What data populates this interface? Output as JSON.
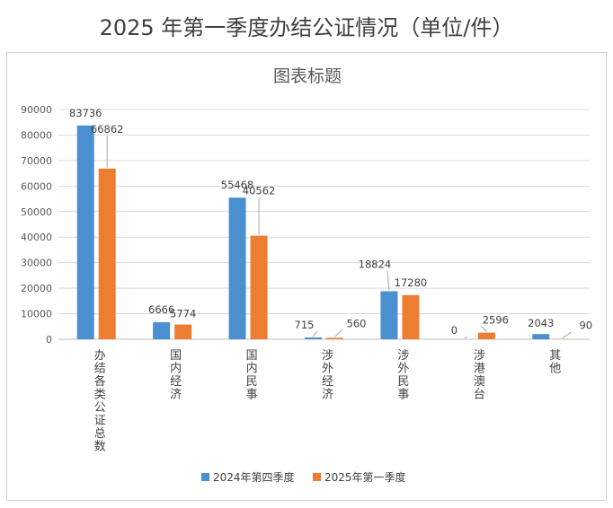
{
  "page": {
    "title": "2025 年第一季度办结公证情况（单位/件）"
  },
  "colors": {
    "series_2024q4": "#4a8fd0",
    "series_2025q1": "#ed7d31",
    "gridline": "#d9d9d9",
    "axis": "#bfbfbf"
  },
  "chart_data": {
    "type": "bar",
    "title": "图表标题",
    "xlabel": "",
    "ylabel": "",
    "ylim": [
      0,
      90000
    ],
    "yticks": [
      0,
      10000,
      20000,
      30000,
      40000,
      50000,
      60000,
      70000,
      80000,
      90000
    ],
    "grid": true,
    "legend_position": "bottom",
    "categories": [
      "办结各类公证总数",
      "国内经济",
      "国内民事",
      "涉外经济",
      "涉外民事",
      "涉港澳台",
      "其他"
    ],
    "series": [
      {
        "name": "2024年第四季度",
        "values": [
          83736,
          6666,
          55468,
          715,
          18824,
          0,
          2043
        ]
      },
      {
        "name": "2025年第一季度",
        "values": [
          66862,
          5774,
          40562,
          560,
          17280,
          2596,
          90
        ]
      }
    ]
  }
}
